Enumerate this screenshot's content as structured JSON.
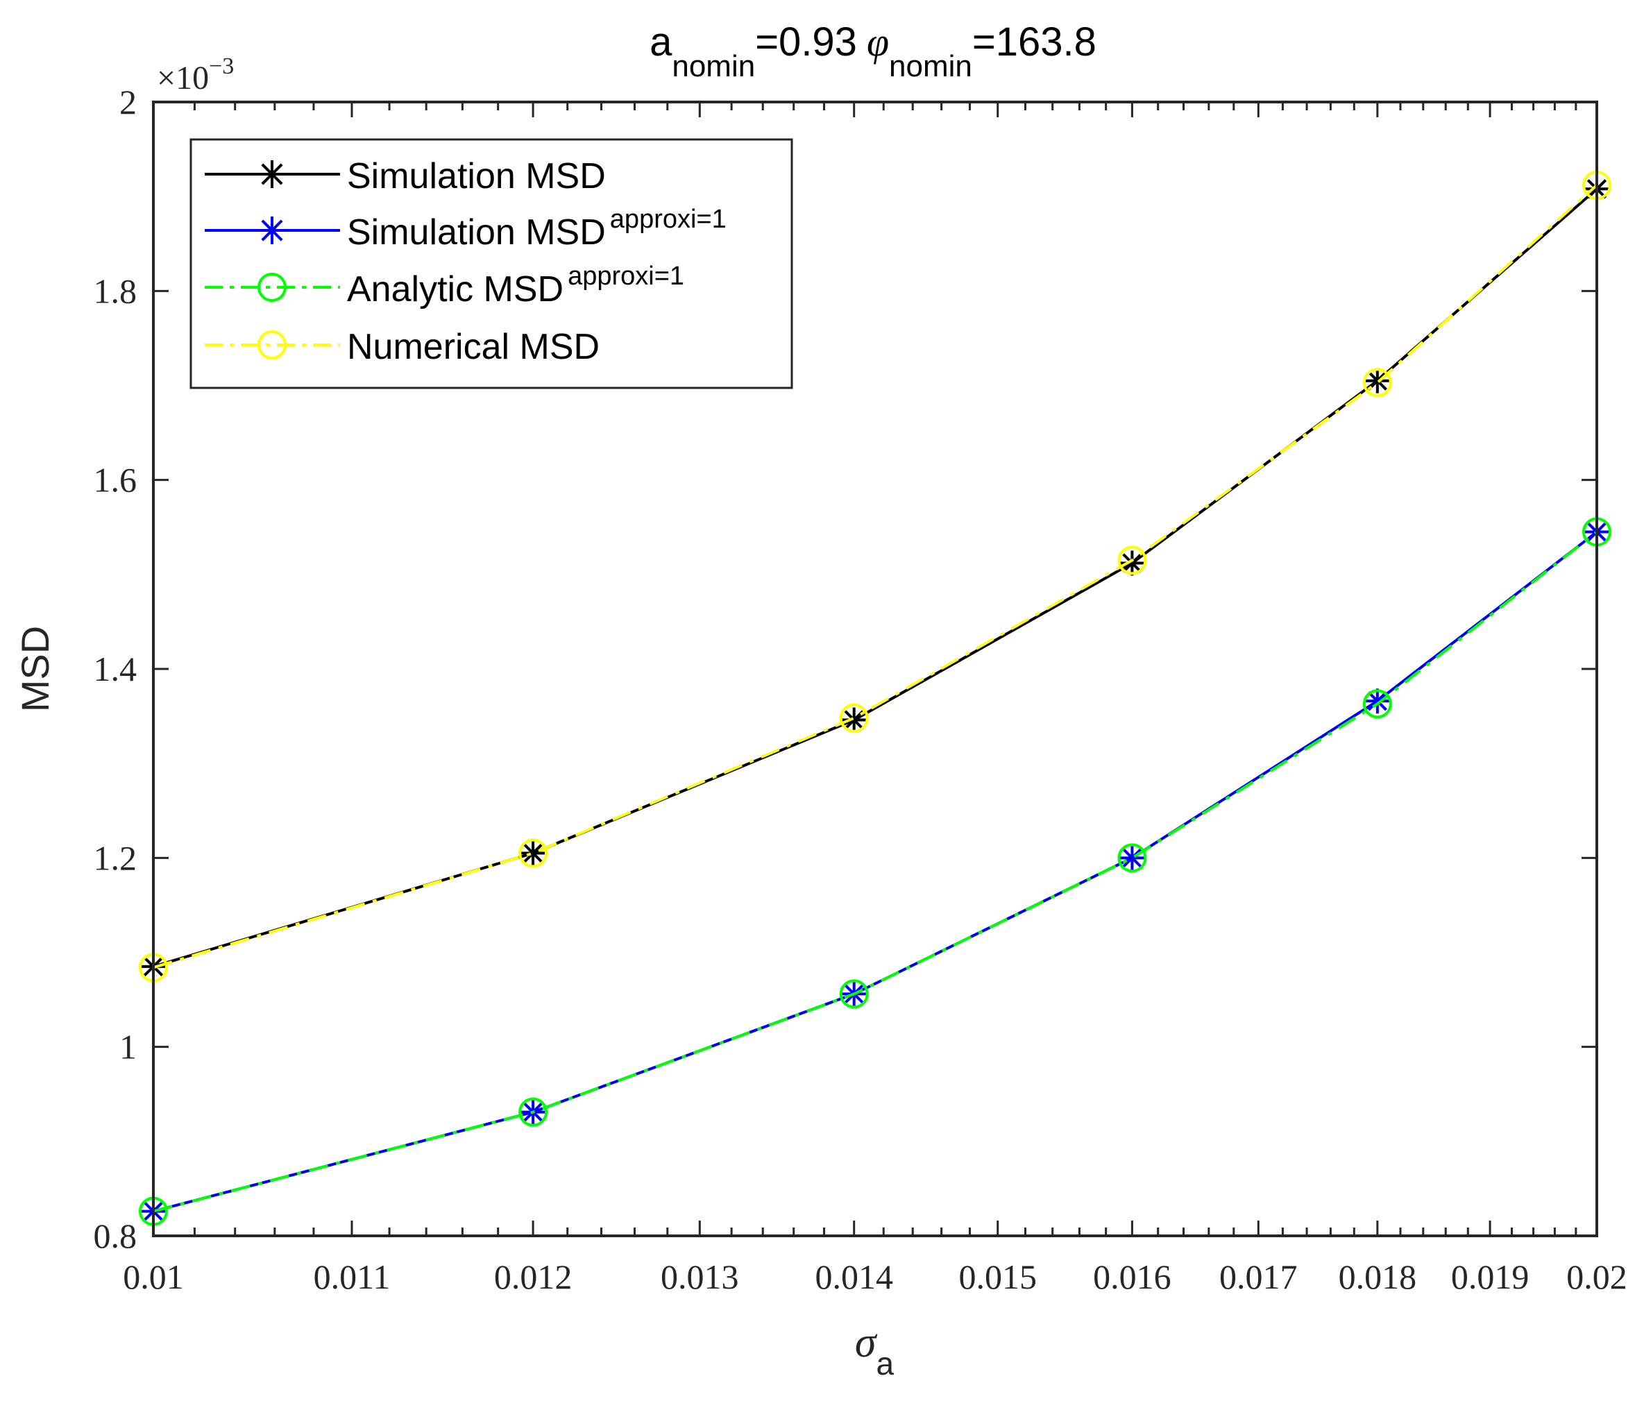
{
  "chart_data": {
    "type": "line",
    "title": "a_nomin=0.93 φ_nomin=163.8",
    "title_parts": {
      "a_symbol": "a",
      "a_sub": "nomin",
      "a_value": "=0.93",
      "phi_symbol": "φ",
      "phi_sub": "nomin",
      "phi_value": "=163.8"
    },
    "xlabel": "σ_a",
    "xlabel_parts": {
      "symbol": "σ",
      "sub": "a"
    },
    "ylabel": "MSD",
    "y_exponent": {
      "base": "×10",
      "power": "−3"
    },
    "x_scale": "log",
    "xlim": [
      0.01,
      0.02
    ],
    "ylim": [
      0.8,
      2.0
    ],
    "x_ticks": [
      0.01,
      0.011,
      0.012,
      0.013,
      0.014,
      0.015,
      0.016,
      0.017,
      0.018,
      0.019,
      0.02
    ],
    "x_tick_labels": [
      "0.01",
      "0.011",
      "0.012",
      "0.013",
      "0.014",
      "0.015",
      "0.016",
      "0.017",
      "0.018",
      "0.019",
      "0.02"
    ],
    "y_ticks": [
      0.8,
      1.0,
      1.2,
      1.4,
      1.6,
      1.8,
      2.0
    ],
    "y_tick_labels": [
      "0.8",
      "1",
      "1.2",
      "1.4",
      "1.6",
      "1.8",
      "2"
    ],
    "grid": false,
    "legend_position": "upper-left",
    "x": [
      0.01,
      0.012,
      0.014,
      0.016,
      0.018,
      0.02
    ],
    "series": [
      {
        "name": "Simulation MSD",
        "sup": "",
        "color": "#000000",
        "line": "solid",
        "marker": "asterisk",
        "values": [
          1.085,
          1.205,
          1.346,
          1.512,
          1.705,
          1.908
        ]
      },
      {
        "name": "Simulation MSD",
        "sup": "approxi=1",
        "color": "#0000ff",
        "line": "solid",
        "marker": "asterisk",
        "values": [
          0.826,
          0.931,
          1.056,
          1.2,
          1.366,
          1.545
        ]
      },
      {
        "name": "Analytic MSD",
        "sup": "approxi=1",
        "color": "#00ff00",
        "line": "dashdot",
        "marker": "circle",
        "values": [
          0.826,
          0.931,
          1.056,
          1.2,
          1.363,
          1.545
        ]
      },
      {
        "name": "Numerical MSD",
        "sup": "",
        "color": "#ffff00",
        "line": "dashdot",
        "marker": "circle",
        "values": [
          1.084,
          1.205,
          1.348,
          1.515,
          1.703,
          1.912
        ]
      }
    ],
    "units_note": "values ×10^-3"
  }
}
